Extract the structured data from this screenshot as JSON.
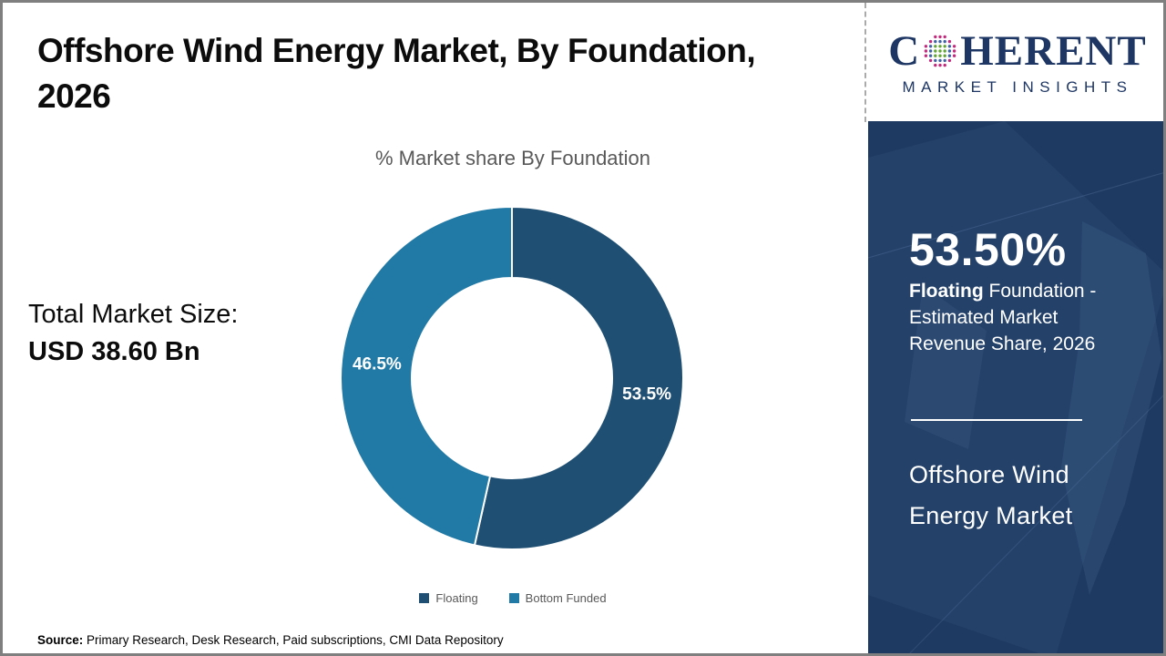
{
  "header": {
    "lines": [
      "Offshore Wind Energy Market, By Foundation,",
      "2026"
    ]
  },
  "logo": {
    "c": "C",
    "rest": "HERENT",
    "tagline": "MARKET INSIGHTS",
    "brand_color": "#1e3664",
    "globe_dot_colors": {
      "inner": "#63a537",
      "mid": "#3f63a5",
      "outer": "#c22b7d"
    }
  },
  "chart_data": {
    "type": "pie",
    "donut": true,
    "title": "% Market share By Foundation",
    "categories": [
      "Floating",
      "Bottom Funded"
    ],
    "values": [
      53.5,
      46.5
    ],
    "labels": [
      "53.5%",
      "46.5%"
    ],
    "colors": [
      "#1f5074",
      "#2179a5"
    ],
    "start_angle_deg": 0,
    "direction": "clockwise",
    "legend_position": "bottom"
  },
  "market_size": {
    "label": "Total Market Size:",
    "value": "USD 38.60 Bn"
  },
  "sidebar": {
    "background": "#1f3a62",
    "highlight_value": "53.50%",
    "highlight_bold": "Floating",
    "highlight_rest": " Foundation - Estimated Market Revenue Share, 2026",
    "name_lines": [
      "Offshore Wind",
      "Energy Market"
    ]
  },
  "footer": {
    "source_label": "Source:",
    "source_text": " Primary Research, Desk Research, Paid subscriptions, CMI Data Repository"
  }
}
